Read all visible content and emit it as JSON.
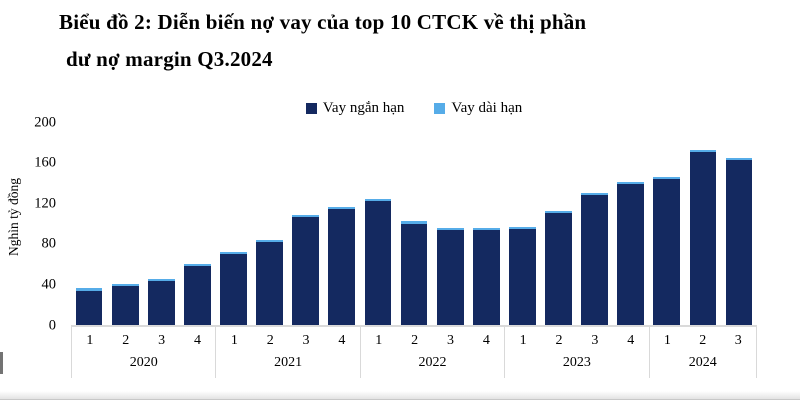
{
  "title": {
    "line1": "Biểu đồ 2: Diễn biến nợ vay của top 10 CTCK về thị phần",
    "line2": "dư nợ margin Q3.2024"
  },
  "chart_data": {
    "type": "bar",
    "stacked": true,
    "title": "Biểu đồ 2: Diễn biến nợ vay của top 10 CTCK về thị phần dư nợ margin Q3.2024",
    "ylabel": "Nghìn tỷ đồng",
    "ylim": [
      0,
      200
    ],
    "yticks": [
      0,
      40,
      80,
      120,
      160,
      200
    ],
    "grid": false,
    "legend_position": "top-center",
    "groups": [
      {
        "year": "2020",
        "quarters": [
          "1",
          "2",
          "3",
          "4"
        ]
      },
      {
        "year": "2021",
        "quarters": [
          "1",
          "2",
          "3",
          "4"
        ]
      },
      {
        "year": "2022",
        "quarters": [
          "1",
          "2",
          "3",
          "4"
        ]
      },
      {
        "year": "2023",
        "quarters": [
          "1",
          "2",
          "3",
          "4"
        ]
      },
      {
        "year": "2024",
        "quarters": [
          "1",
          "2",
          "3"
        ]
      }
    ],
    "series": [
      {
        "name": "Vay ngắn hạn",
        "color": "#142960",
        "values": [
          34,
          38,
          43,
          58,
          70,
          82,
          106,
          114,
          122,
          100,
          94,
          94,
          95,
          110,
          128,
          139,
          144,
          170,
          163
        ]
      },
      {
        "name": "Vay dài hạn",
        "color": "#56ACE8",
        "values": [
          2,
          2,
          2,
          2,
          2,
          2,
          2,
          2,
          2,
          2,
          2,
          2,
          2,
          2,
          2,
          2,
          2,
          2,
          2
        ]
      }
    ],
    "totals": [
      36,
      40,
      45,
      60,
      72,
      84,
      108,
      116,
      124,
      102,
      96,
      96,
      97,
      112,
      130,
      141,
      146,
      172,
      165
    ]
  },
  "colors": {
    "axis_line": "#dadada",
    "table_border": "#d9d9d9"
  }
}
